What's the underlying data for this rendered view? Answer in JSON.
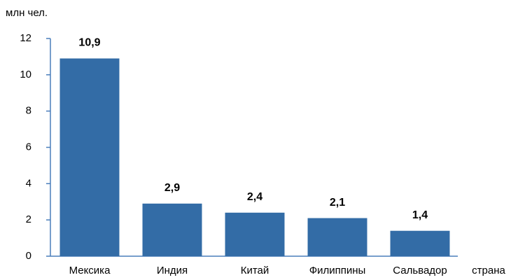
{
  "chart_data": {
    "type": "bar",
    "y_label": "млн чел.",
    "x_label": "страна",
    "categories": [
      "Мексика",
      "Индия",
      "Китай",
      "Филиппины",
      "Сальвадор"
    ],
    "values": [
      10.9,
      2.9,
      2.4,
      2.1,
      1.4
    ],
    "value_labels": [
      "10,9",
      "2,9",
      "2,4",
      "2,1",
      "1,4"
    ],
    "color": "#336ca6",
    "ylim": [
      0,
      12
    ],
    "yticks": [
      0,
      2,
      4,
      6,
      8,
      10,
      12
    ],
    "grid": false
  }
}
